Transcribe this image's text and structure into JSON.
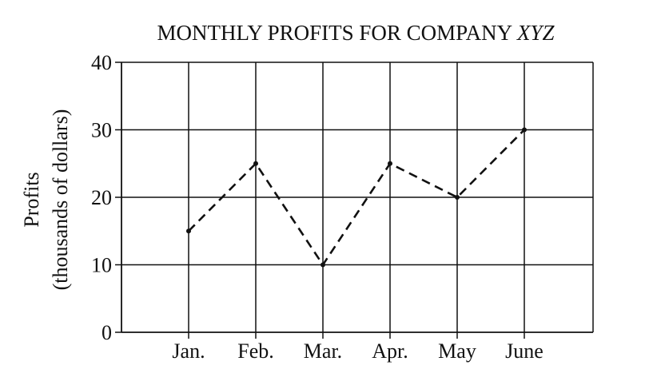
{
  "chart_data": {
    "type": "line",
    "title": "MONTHLY PROFITS FOR COMPANY",
    "title_suffix": "XYZ",
    "ylabel": [
      "Profits",
      "(thousands of dollars)"
    ],
    "categories": [
      "Jan.",
      "Feb.",
      "Mar.",
      "Apr.",
      "May",
      "June"
    ],
    "series": [
      {
        "values": [
          15,
          25,
          10,
          25,
          20,
          30
        ]
      }
    ],
    "ylim": [
      0,
      40
    ],
    "yticks": [
      0,
      10,
      20,
      30,
      40
    ],
    "grid": true,
    "line_style": "dashed",
    "colors": {
      "line": "#111111",
      "grid": "#111111"
    }
  }
}
